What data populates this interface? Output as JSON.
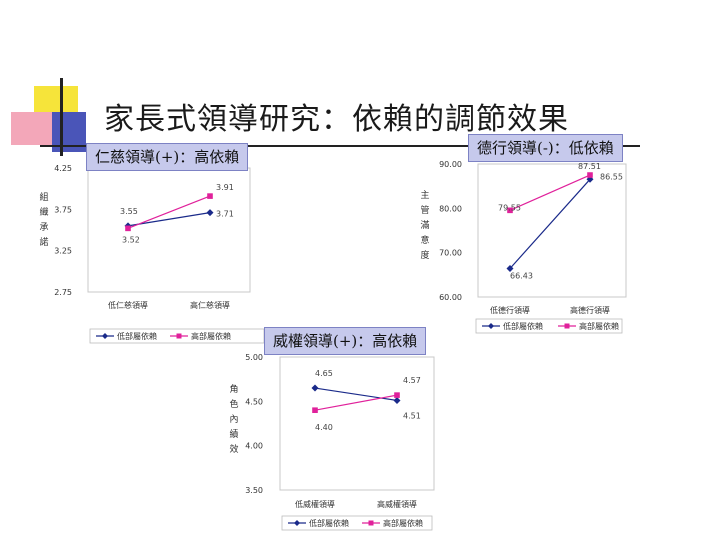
{
  "slide": {
    "title": "家長式領導研究：依賴的調節效果",
    "callouts": {
      "left": "仁慈領導(+)：高依賴",
      "right": "德行領導(-)：低依賴",
      "mid": "威權領導(+)：高依賴"
    }
  },
  "colors": {
    "low": "#1a2a8a",
    "high": "#e0219b",
    "callout_bg": "#c6c9ec",
    "yellow": "#f6e43a",
    "pink": "#f3a7b9",
    "blue": "#4a55b8"
  },
  "chart_data": [
    {
      "id": "benevolent",
      "type": "line",
      "ylabel": "組織承諾",
      "ylim": [
        2.75,
        4.25
      ],
      "yticks": [
        2.75,
        3.25,
        3.75,
        4.25
      ],
      "ytick_labels": [
        "2.75",
        "3.25",
        "3.75",
        "4.25"
      ],
      "categories": [
        "低仁慈領導",
        "高仁慈領導"
      ],
      "series": [
        {
          "name": "低部屬依賴",
          "key": "low",
          "values": [
            3.55,
            3.71
          ],
          "labels": [
            "3.55",
            "3.71"
          ]
        },
        {
          "name": "高部屬依賴",
          "key": "high",
          "values": [
            3.52,
            3.91
          ],
          "labels": [
            "3.52",
            "3.91"
          ]
        }
      ],
      "grid": false,
      "legend": "bottom"
    },
    {
      "id": "moral",
      "type": "line",
      "ylabel": "主管滿意度",
      "ylim": [
        60.0,
        90.0
      ],
      "yticks": [
        60,
        70,
        80,
        90
      ],
      "ytick_labels": [
        "60.00",
        "70.00",
        "80.00",
        "90.00"
      ],
      "categories": [
        "低德行領導",
        "高德行領導"
      ],
      "series": [
        {
          "name": "低部屬依賴",
          "key": "low",
          "values": [
            66.43,
            86.55
          ],
          "labels": [
            "66.43",
            "86.55"
          ]
        },
        {
          "name": "高部屬依賴",
          "key": "high",
          "values": [
            79.55,
            87.51
          ],
          "labels": [
            "79.55",
            "87.51"
          ]
        }
      ],
      "grid": false,
      "legend": "bottom"
    },
    {
      "id": "authoritarian",
      "type": "line",
      "ylabel": "角色內績效",
      "ylim": [
        3.5,
        5.0
      ],
      "yticks": [
        3.5,
        4.0,
        4.5,
        5.0
      ],
      "ytick_labels": [
        "3.50",
        "4.00",
        "4.50",
        "5.00"
      ],
      "categories": [
        "低威權領導",
        "高威權領導"
      ],
      "series": [
        {
          "name": "低部屬依賴",
          "key": "low",
          "values": [
            4.65,
            4.51
          ],
          "labels": [
            "4.65",
            "4.51"
          ]
        },
        {
          "name": "高部屬依賴",
          "key": "high",
          "values": [
            4.4,
            4.57
          ],
          "labels": [
            "4.40",
            "4.57"
          ]
        }
      ],
      "grid": false,
      "legend": "bottom"
    }
  ]
}
